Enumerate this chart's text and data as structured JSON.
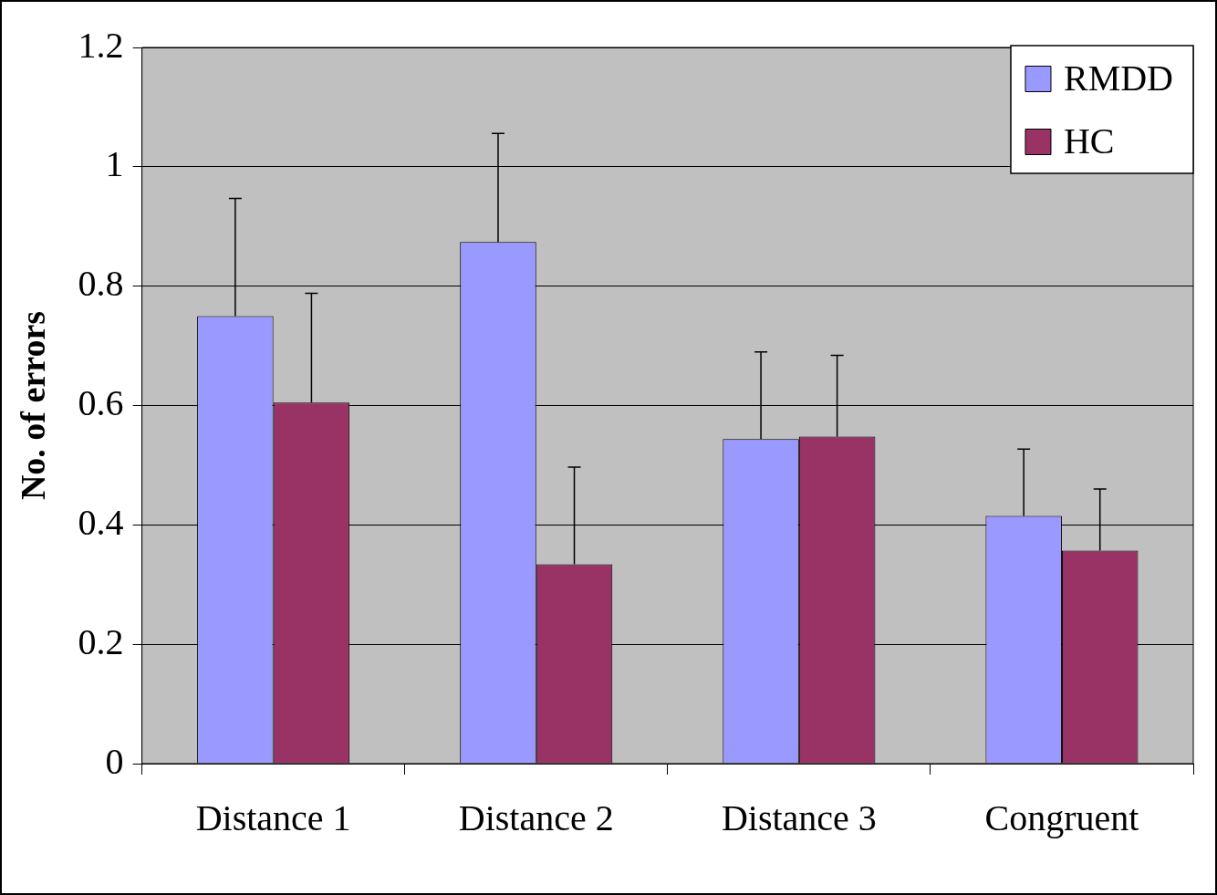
{
  "chart_data": {
    "type": "bar",
    "ylabel": "No. of errors",
    "categories": [
      "Distance 1",
      "Distance 2",
      "Distance 3",
      "Congruent"
    ],
    "series": [
      {
        "name": "RMDD",
        "color": "#9999ff",
        "values": [
          0.75,
          0.874,
          0.544,
          0.415
        ],
        "errors": [
          [
            0.75,
            0.947
          ],
          [
            0.874,
            1.056
          ],
          [
            0.544,
            0.69
          ],
          [
            0.415,
            0.527
          ]
        ]
      },
      {
        "name": "HC",
        "color": "#993366",
        "values": [
          0.605,
          0.334,
          0.548,
          0.357
        ],
        "errors": [
          [
            0.605,
            0.788
          ],
          [
            0.334,
            0.497
          ],
          [
            0.548,
            0.684
          ],
          [
            0.357,
            0.46
          ]
        ]
      }
    ],
    "ylim": [
      0,
      1.2
    ],
    "yticks": [
      0,
      0.2,
      0.4,
      0.6,
      0.8,
      1,
      1.2
    ],
    "grid": "y",
    "legend": "top right"
  }
}
